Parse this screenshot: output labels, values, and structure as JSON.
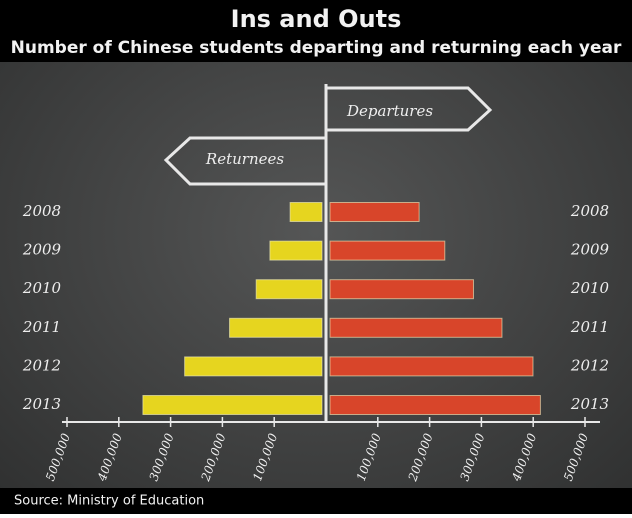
{
  "chart_data": {
    "type": "butterfly-bar",
    "title": "Ins and Outs",
    "subtitle": "Number of Chinese students departing and returning each year",
    "source": "Source: Ministry of Education",
    "categories": [
      "2008",
      "2009",
      "2010",
      "2011",
      "2012",
      "2013"
    ],
    "series": [
      {
        "name": "Returnees",
        "color": "#e6d51f",
        "values": [
          -69300,
          -108300,
          -134800,
          -186200,
          -272900,
          -353500
        ]
      },
      {
        "name": "Departures",
        "color": "#d8452a",
        "values": [
          179800,
          229300,
          284700,
          339700,
          399600,
          413900
        ]
      }
    ],
    "xlim": [
      -500000,
      500000
    ],
    "xticks": [
      {
        "value": -500000,
        "label": "500,000"
      },
      {
        "value": -400000,
        "label": "400,000"
      },
      {
        "value": -300000,
        "label": "300,000"
      },
      {
        "value": -200000,
        "label": "200,000"
      },
      {
        "value": -100000,
        "label": "100,000"
      },
      {
        "value": 100000,
        "label": "100,000"
      },
      {
        "value": 200000,
        "label": "200,000"
      },
      {
        "value": 300000,
        "label": "300,000"
      },
      {
        "value": 400000,
        "label": "400,000"
      },
      {
        "value": 500000,
        "label": "500,000"
      }
    ]
  }
}
